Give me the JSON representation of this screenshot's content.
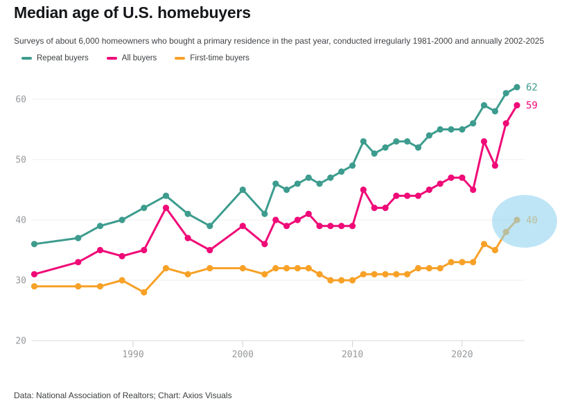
{
  "header": {
    "title": "Median age of U.S. homebuyers",
    "subtitle": "Surveys of about 6,000 homeowners who bought a primary residence in the past year, conducted irregularly 1981-2000 and annually 2002-2025"
  },
  "legend": {
    "items": [
      {
        "label": "Repeat buyers",
        "color": "#3d9c8e"
      },
      {
        "label": "All buyers",
        "color": "#ef0a77"
      },
      {
        "label": "First-time buyers",
        "color": "#f7a127"
      }
    ]
  },
  "chart_data": {
    "type": "line",
    "x": [
      1981,
      1985,
      1987,
      1989,
      1991,
      1993,
      1995,
      1997,
      2000,
      2002,
      2003,
      2004,
      2005,
      2006,
      2007,
      2008,
      2009,
      2010,
      2011,
      2012,
      2013,
      2014,
      2015,
      2016,
      2017,
      2018,
      2019,
      2020,
      2021,
      2022,
      2023,
      2024,
      2025
    ],
    "series": [
      {
        "name": "Repeat buyers",
        "color": "#3d9c8e",
        "end_label": "62",
        "values": [
          36,
          37,
          39,
          40,
          42,
          44,
          41,
          39,
          45,
          41,
          46,
          45,
          46,
          47,
          46,
          47,
          48,
          49,
          53,
          51,
          52,
          53,
          53,
          52,
          54,
          55,
          55,
          55,
          56,
          59,
          58,
          61,
          62
        ]
      },
      {
        "name": "All buyers",
        "color": "#ef0a77",
        "end_label": "59",
        "values": [
          31,
          33,
          35,
          34,
          35,
          42,
          37,
          35,
          39,
          36,
          40,
          39,
          40,
          41,
          39,
          39,
          39,
          39,
          45,
          42,
          42,
          44,
          44,
          44,
          45,
          46,
          47,
          47,
          45,
          53,
          49,
          56,
          59
        ]
      },
      {
        "name": "First-time buyers",
        "color": "#f7a127",
        "end_label": "40",
        "values": [
          29,
          29,
          29,
          30,
          28,
          32,
          31,
          32,
          32,
          31,
          32,
          32,
          32,
          32,
          31,
          30,
          30,
          30,
          31,
          31,
          31,
          31,
          31,
          32,
          32,
          32,
          33,
          33,
          33,
          36,
          35,
          38,
          40
        ]
      }
    ],
    "y_ticks": [
      20,
      30,
      40,
      50,
      60
    ],
    "x_ticks": [
      1990,
      2000,
      2010,
      2020
    ],
    "ylim": [
      20,
      62
    ],
    "xlim": [
      1981,
      2025
    ],
    "grid": "horizontal",
    "legend_position": "top-left",
    "annotation": {
      "type": "highlight-circle",
      "series": "First-time buyers",
      "year": 2025,
      "value": 40,
      "color": "#8fd2ef"
    }
  },
  "footer": {
    "source": "Data: National Association of Realtors; Chart: Axios Visuals"
  }
}
